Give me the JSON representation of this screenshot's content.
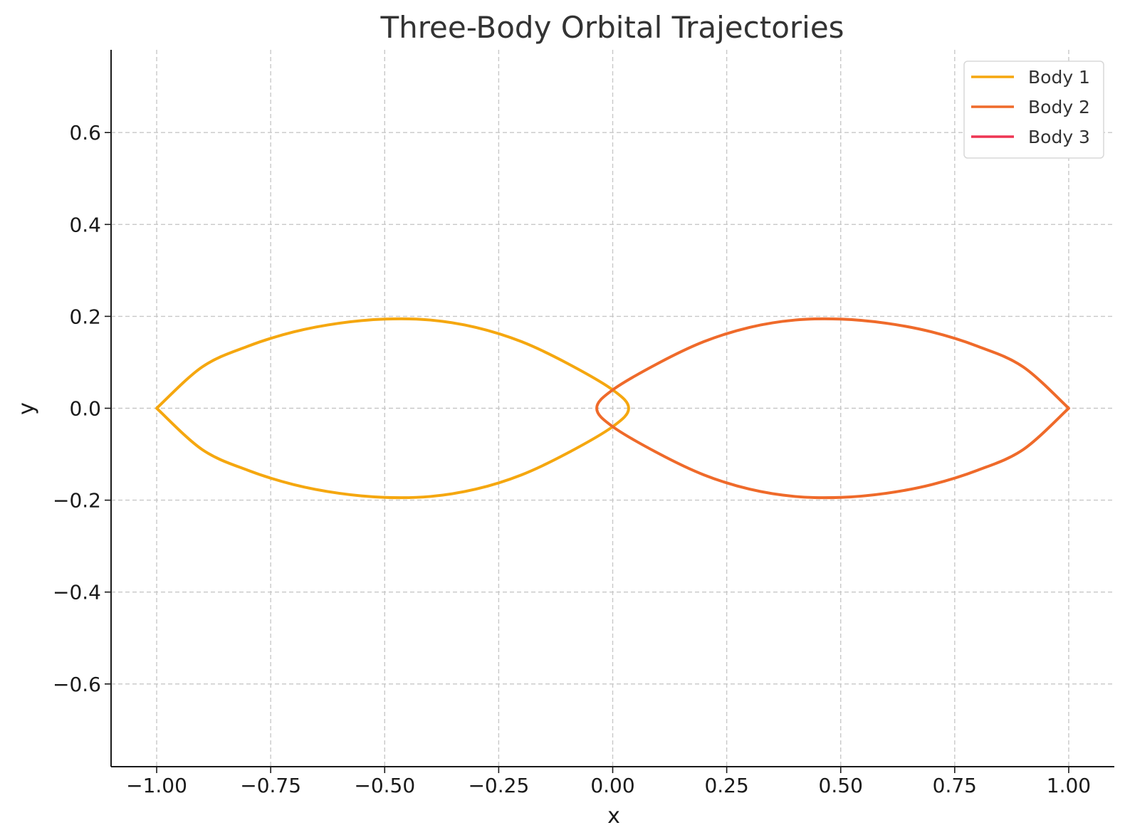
{
  "chart_data": {
    "type": "line",
    "title": "Three-Body Orbital Trajectories",
    "xlabel": "x",
    "ylabel": "y",
    "xlim": [
      -1.1,
      1.1
    ],
    "ylim": [
      -0.78,
      0.78
    ],
    "xticks": [
      -1.0,
      -0.75,
      -0.5,
      -0.25,
      0.0,
      0.25,
      0.5,
      0.75,
      1.0
    ],
    "xtick_labels": [
      "−1.00",
      "−0.75",
      "−0.50",
      "−0.25",
      "0.00",
      "0.25",
      "0.50",
      "0.75",
      "1.00"
    ],
    "yticks": [
      -0.6,
      -0.4,
      -0.2,
      0.0,
      0.2,
      0.4,
      0.6
    ],
    "ytick_labels": [
      "−0.6",
      "−0.4",
      "−0.2",
      "0.0",
      "0.2",
      "0.4",
      "0.6"
    ],
    "grid": true,
    "legend_position": "top-right",
    "series": [
      {
        "name": "Body 1",
        "color": "#f5a70f",
        "x": [
          -1.0,
          -0.9,
          -0.8,
          -0.7,
          -0.6,
          -0.5,
          -0.4,
          -0.3,
          -0.2,
          -0.1,
          0.0,
          0.035,
          0.0,
          -0.1,
          -0.2,
          -0.3,
          -0.4,
          -0.5,
          -0.6,
          -0.7,
          -0.8,
          -0.9,
          -1.0
        ],
        "y": [
          0.0,
          0.09,
          0.135,
          0.166,
          0.185,
          0.194,
          0.192,
          0.176,
          0.145,
          0.098,
          0.04,
          0.0,
          -0.04,
          -0.098,
          -0.145,
          -0.176,
          -0.192,
          -0.194,
          -0.185,
          -0.166,
          -0.135,
          -0.09,
          0.0
        ]
      },
      {
        "name": "Body 2",
        "color": "#ef6a2a",
        "x": [
          1.0,
          0.9,
          0.8,
          0.7,
          0.6,
          0.5,
          0.4,
          0.3,
          0.2,
          0.1,
          0.0,
          -0.035,
          0.0,
          0.1,
          0.2,
          0.3,
          0.4,
          0.5,
          0.6,
          0.7,
          0.8,
          0.9,
          1.0
        ],
        "y": [
          0.0,
          0.09,
          0.135,
          0.166,
          0.185,
          0.194,
          0.192,
          0.176,
          0.145,
          0.098,
          0.04,
          0.0,
          -0.04,
          -0.098,
          -0.145,
          -0.176,
          -0.192,
          -0.194,
          -0.185,
          -0.166,
          -0.135,
          -0.09,
          0.0
        ]
      },
      {
        "name": "Body 3",
        "color": "#ee3452",
        "x": [],
        "y": []
      }
    ]
  }
}
